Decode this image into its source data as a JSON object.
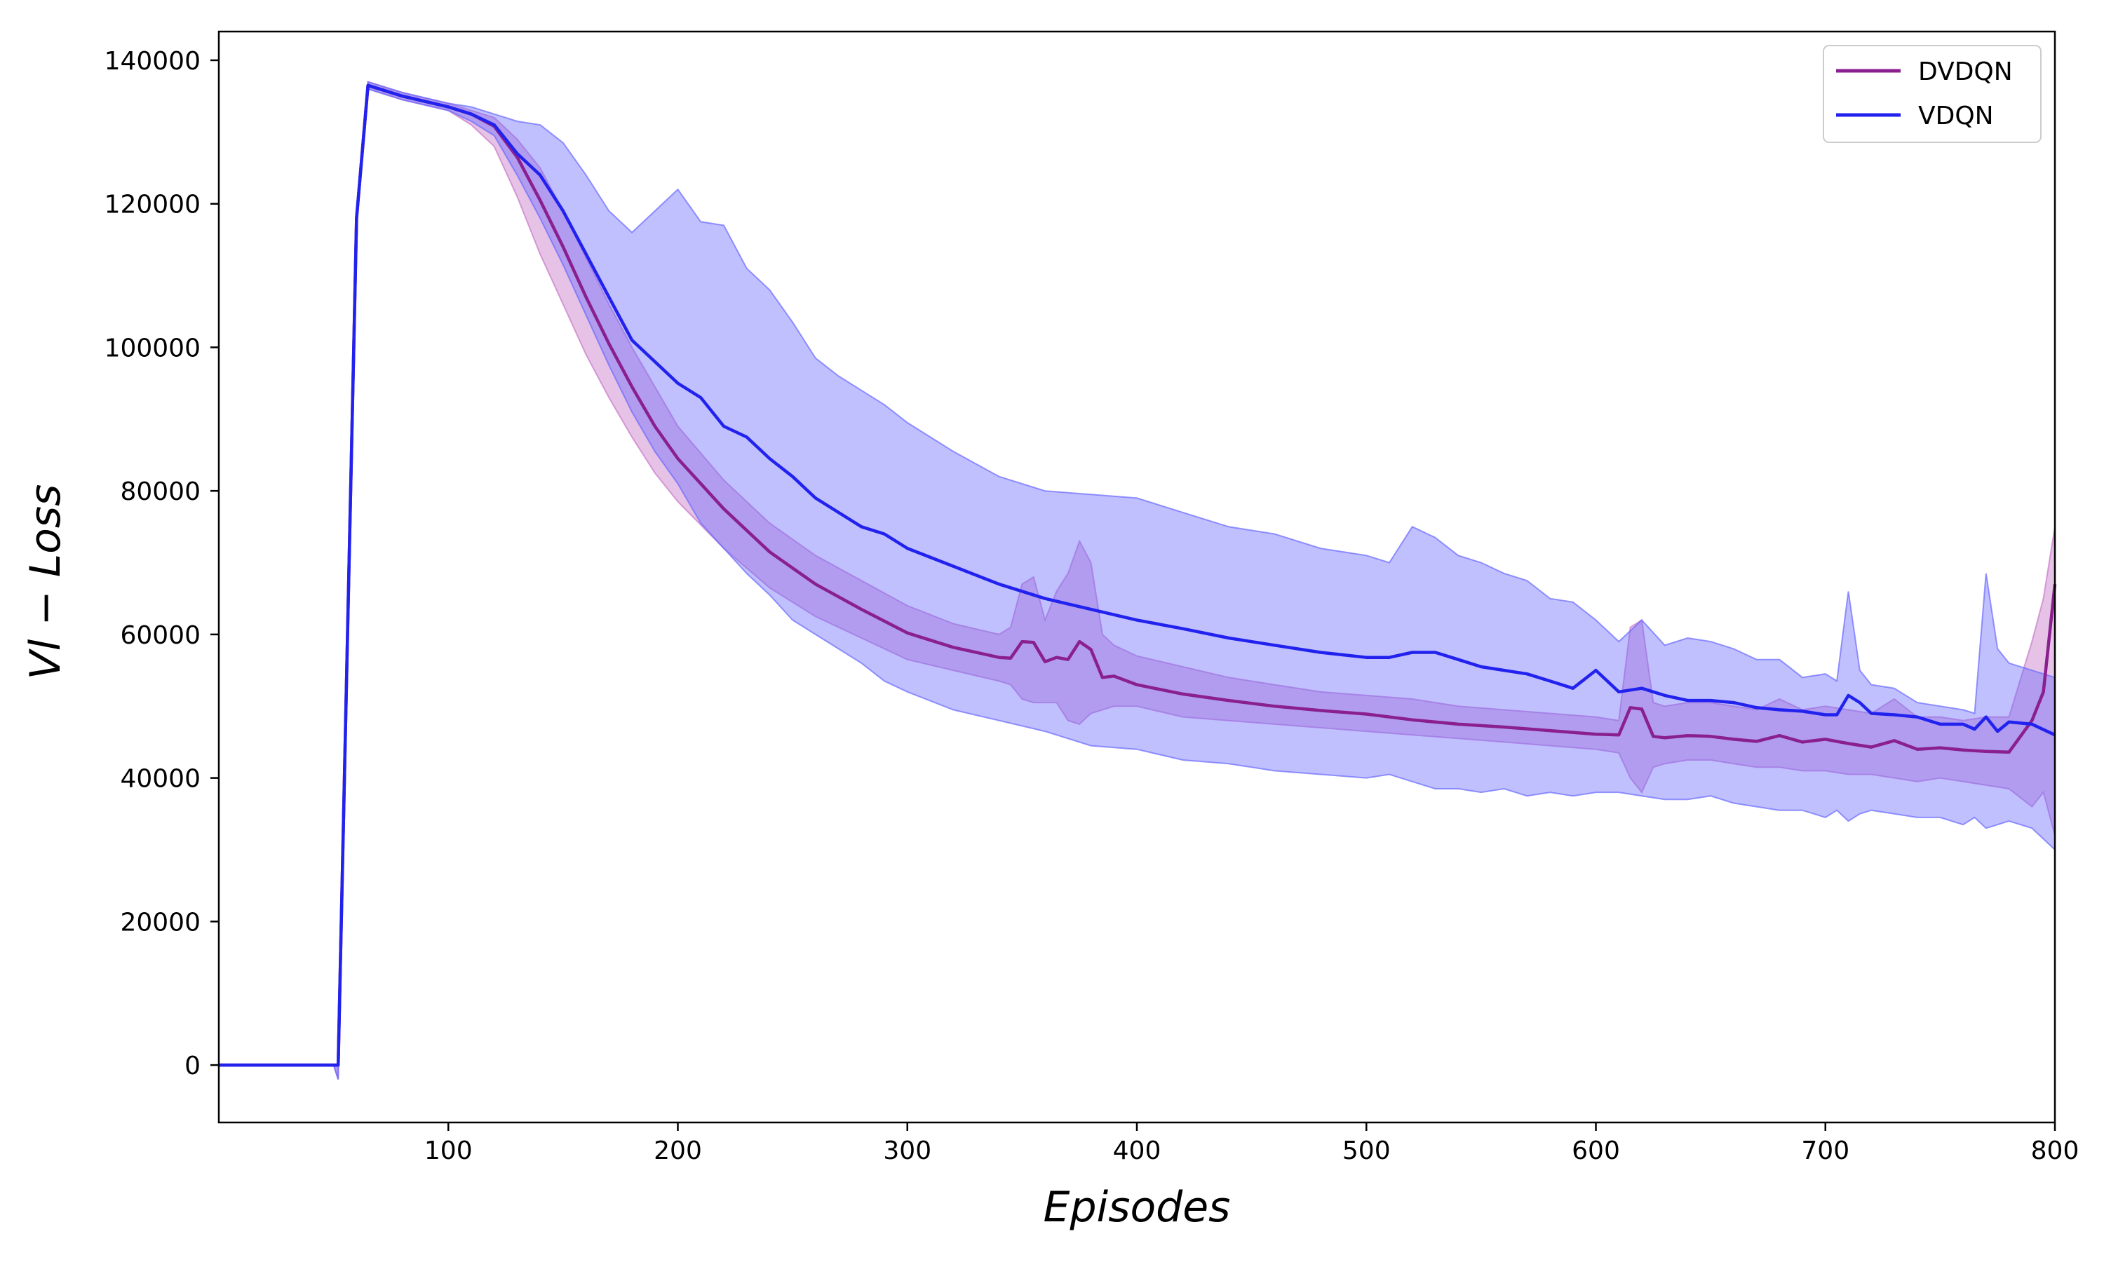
{
  "chart_data": {
    "type": "line",
    "title": "",
    "xlabel": "Episodes",
    "ylabel": "Vl − Loss",
    "xlim": [
      0,
      800
    ],
    "ylim": [
      -8000,
      144000
    ],
    "x_ticks": [
      100,
      200,
      300,
      400,
      500,
      600,
      700,
      800
    ],
    "y_ticks": [
      0,
      20000,
      40000,
      60000,
      80000,
      100000,
      120000,
      140000
    ],
    "grid": false,
    "legend_position": "top-right",
    "series": [
      {
        "name": "DVDQN",
        "color": "#8a1f8f",
        "band_color": "#c878c8",
        "x": [
          0,
          50,
          52,
          60,
          65,
          80,
          100,
          110,
          120,
          130,
          140,
          150,
          160,
          170,
          180,
          190,
          200,
          220,
          240,
          260,
          280,
          300,
          320,
          340,
          345,
          350,
          355,
          360,
          365,
          370,
          375,
          380,
          385,
          390,
          400,
          420,
          440,
          460,
          480,
          500,
          520,
          540,
          560,
          580,
          600,
          610,
          615,
          620,
          625,
          630,
          640,
          650,
          660,
          670,
          680,
          690,
          700,
          710,
          720,
          730,
          740,
          750,
          760,
          770,
          780,
          790,
          795,
          800
        ],
        "y": [
          0,
          0,
          0,
          118000,
          136500,
          135000,
          133500,
          132500,
          130800,
          126500,
          120500,
          114000,
          107000,
          100500,
          94500,
          89000,
          84500,
          77500,
          71500,
          67000,
          63500,
          60200,
          58200,
          56800,
          56700,
          59000,
          58900,
          56200,
          56800,
          56500,
          59000,
          57900,
          54000,
          54200,
          53000,
          51700,
          50800,
          50000,
          49400,
          48900,
          48100,
          47500,
          47100,
          46600,
          46100,
          46000,
          49800,
          49600,
          45800,
          45600,
          45900,
          45800,
          45400,
          45100,
          45900,
          45000,
          45400,
          44800,
          44300,
          45200,
          44000,
          44200,
          43900,
          43700,
          43600,
          48000,
          52000,
          67000
        ],
        "lower": [
          0,
          0,
          -2000,
          117000,
          136000,
          134500,
          133000,
          131000,
          128000,
          121000,
          113000,
          106000,
          99000,
          93000,
          87500,
          82500,
          78500,
          72000,
          66500,
          62500,
          59500,
          56500,
          55000,
          53500,
          53000,
          51000,
          50500,
          50500,
          50500,
          48000,
          47500,
          49000,
          49500,
          50000,
          50000,
          48500,
          48000,
          47500,
          47000,
          46500,
          46000,
          45500,
          45000,
          44500,
          44000,
          43500,
          40000,
          38000,
          41500,
          42000,
          42500,
          42500,
          42000,
          41500,
          41500,
          41000,
          41000,
          40500,
          40500,
          40000,
          39500,
          40000,
          39500,
          39000,
          38500,
          36000,
          38000,
          32000
        ],
        "upper": [
          0,
          0,
          0,
          119000,
          137000,
          135500,
          134000,
          133000,
          132000,
          129000,
          125000,
          119000,
          112500,
          106000,
          100000,
          94500,
          89000,
          81500,
          75500,
          71000,
          67500,
          64000,
          61500,
          60000,
          61000,
          67000,
          68000,
          62000,
          66000,
          68500,
          73000,
          70000,
          60000,
          58500,
          57000,
          55500,
          54000,
          53000,
          52000,
          51500,
          51000,
          50000,
          49500,
          49000,
          48500,
          48000,
          61000,
          62000,
          50500,
          50000,
          50500,
          50500,
          50000,
          49500,
          51000,
          49500,
          50000,
          49500,
          49000,
          51000,
          48500,
          48500,
          48000,
          48500,
          48500,
          59000,
          65000,
          75000
        ]
      },
      {
        "name": "VDQN",
        "color": "#2222ee",
        "band_color": "#6a6aff",
        "x": [
          0,
          50,
          52,
          60,
          65,
          80,
          100,
          110,
          120,
          130,
          140,
          150,
          160,
          170,
          180,
          190,
          200,
          210,
          220,
          230,
          240,
          250,
          260,
          270,
          280,
          290,
          300,
          320,
          340,
          360,
          380,
          400,
          420,
          440,
          460,
          480,
          500,
          510,
          520,
          530,
          540,
          550,
          560,
          570,
          580,
          590,
          600,
          610,
          620,
          630,
          640,
          650,
          660,
          670,
          680,
          690,
          700,
          705,
          710,
          715,
          720,
          730,
          740,
          750,
          760,
          765,
          770,
          775,
          780,
          790,
          800
        ],
        "y": [
          0,
          0,
          0,
          118000,
          136500,
          135000,
          133500,
          132500,
          131000,
          127000,
          124000,
          119000,
          113000,
          107000,
          101000,
          98000,
          95000,
          93000,
          89000,
          87500,
          84500,
          82000,
          79000,
          77000,
          75000,
          74000,
          72000,
          69500,
          67000,
          65000,
          63500,
          62000,
          60800,
          59500,
          58500,
          57500,
          56800,
          56800,
          57500,
          57500,
          56500,
          55500,
          55000,
          54500,
          53500,
          52500,
          55000,
          52000,
          52500,
          51500,
          50800,
          50800,
          50500,
          49800,
          49500,
          49300,
          48800,
          48800,
          51500,
          50500,
          49000,
          48800,
          48500,
          47500,
          47500,
          46800,
          48500,
          46500,
          47800,
          47500,
          46000
        ],
        "lower": [
          0,
          0,
          -2000,
          117000,
          136000,
          134500,
          133000,
          131500,
          129500,
          124000,
          118000,
          111500,
          104500,
          97500,
          91000,
          85500,
          81000,
          75500,
          72000,
          68500,
          65500,
          62000,
          60000,
          58000,
          56000,
          53500,
          52000,
          49500,
          48000,
          46500,
          44500,
          44000,
          42500,
          42000,
          41000,
          40500,
          40000,
          40500,
          39500,
          38500,
          38500,
          38000,
          38500,
          37500,
          38000,
          37500,
          38000,
          38000,
          37500,
          37000,
          37000,
          37500,
          36500,
          36000,
          35500,
          35500,
          34500,
          35500,
          34000,
          35000,
          35500,
          35000,
          34500,
          34500,
          33500,
          34500,
          33000,
          33500,
          34000,
          33000,
          30000
        ],
        "upper": [
          0,
          0,
          0,
          119000,
          137000,
          135500,
          134000,
          133500,
          132500,
          131500,
          131000,
          128500,
          124000,
          119000,
          116000,
          119000,
          122000,
          117500,
          117000,
          111000,
          108000,
          103500,
          98500,
          96000,
          94000,
          92000,
          89500,
          85500,
          82000,
          80000,
          79500,
          79000,
          77000,
          75000,
          74000,
          72000,
          71000,
          70000,
          75000,
          73500,
          71000,
          70000,
          68500,
          67500,
          65000,
          64500,
          62000,
          59000,
          62000,
          58500,
          59500,
          59000,
          58000,
          56500,
          56500,
          54000,
          54500,
          53500,
          66000,
          55000,
          53000,
          52500,
          50500,
          50000,
          49500,
          49000,
          68500,
          58000,
          56000,
          55000,
          54000
        ]
      }
    ]
  }
}
